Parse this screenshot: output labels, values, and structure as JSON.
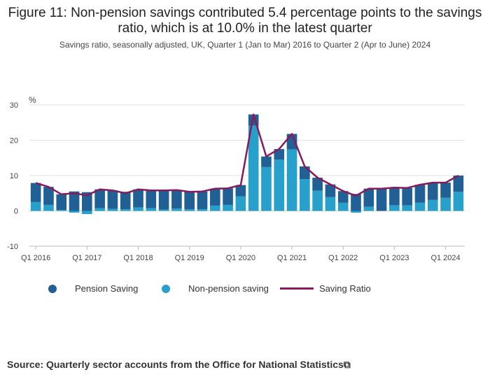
{
  "title": "Figure 11: Non-pension savings contributed 5.4 percentage points to the savings ratio, which is at 10.0% in the latest quarter",
  "subtitle": "Savings ratio, seasonally adjusted, UK, Quarter 1 (Jan to Mar) 2016 to Quarter 2 (Apr to June) 2024",
  "source": "Source: Quarterly sector accounts from the Office for National Statistics⧉",
  "legend": {
    "pension": "Pension Saving",
    "nonpension": "Non-pension saving",
    "ratio": "Saving Ratio"
  },
  "colors": {
    "pension": "#206095",
    "nonpension": "#27a0cc",
    "ratio": "#871a5b",
    "grid": "#e0e0e0",
    "axis": "#bbbbbb"
  },
  "chart_data": {
    "type": "bar",
    "stacked": true,
    "ylabel": "%",
    "ylim": [
      -10,
      30
    ],
    "yticks": [
      -10,
      0,
      10,
      20,
      30
    ],
    "xtick_labels": [
      "Q1 2016",
      "Q1 2017",
      "Q1 2018",
      "Q1 2019",
      "Q1 2020",
      "Q1 2021",
      "Q1 2022",
      "Q1 2023",
      "Q1 2024"
    ],
    "categories": [
      "Q1 2016",
      "Q2 2016",
      "Q3 2016",
      "Q4 2016",
      "Q1 2017",
      "Q2 2017",
      "Q3 2017",
      "Q4 2017",
      "Q1 2018",
      "Q2 2018",
      "Q3 2018",
      "Q4 2018",
      "Q1 2019",
      "Q2 2019",
      "Q3 2019",
      "Q4 2019",
      "Q1 2020",
      "Q2 2020",
      "Q3 2020",
      "Q4 2020",
      "Q1 2021",
      "Q2 2021",
      "Q3 2021",
      "Q4 2021",
      "Q1 2022",
      "Q2 2022",
      "Q3 2022",
      "Q4 2022",
      "Q1 2023",
      "Q2 2023",
      "Q3 2023",
      "Q4 2023",
      "Q1 2024",
      "Q2 2024"
    ],
    "series": [
      {
        "name": "Pension Saving",
        "values": [
          5.4,
          5.1,
          4.4,
          5.5,
          5.3,
          5.3,
          5.2,
          4.9,
          5.1,
          5.0,
          5.4,
          5.2,
          4.9,
          5.0,
          4.8,
          4.7,
          3.2,
          3.2,
          3.0,
          3.0,
          4.4,
          3.6,
          3.7,
          3.6,
          3.3,
          4.8,
          5.1,
          6.3,
          5.0,
          4.9,
          5.1,
          4.9,
          4.3,
          4.6
        ]
      },
      {
        "name": "Non-pension saving",
        "values": [
          2.5,
          1.7,
          0.3,
          -0.5,
          -0.9,
          0.8,
          0.6,
          0.5,
          1.0,
          0.8,
          0.4,
          0.7,
          0.5,
          0.5,
          1.5,
          1.7,
          4.1,
          24.1,
          12.4,
          14.5,
          17.4,
          9.0,
          5.7,
          3.9,
          2.3,
          -0.5,
          1.2,
          0.0,
          1.6,
          1.6,
          2.3,
          3.1,
          3.7,
          5.4
        ]
      },
      {
        "name": "Saving Ratio",
        "type": "line",
        "values": [
          7.9,
          6.8,
          4.7,
          5.0,
          4.4,
          6.1,
          5.8,
          5.0,
          6.1,
          5.8,
          5.8,
          5.9,
          5.4,
          5.5,
          6.3,
          6.4,
          7.3,
          27.3,
          15.4,
          17.5,
          21.8,
          12.6,
          9.4,
          7.5,
          5.6,
          4.3,
          6.3,
          6.3,
          6.6,
          6.5,
          7.4,
          8.0,
          8.0,
          10.0
        ]
      }
    ]
  }
}
